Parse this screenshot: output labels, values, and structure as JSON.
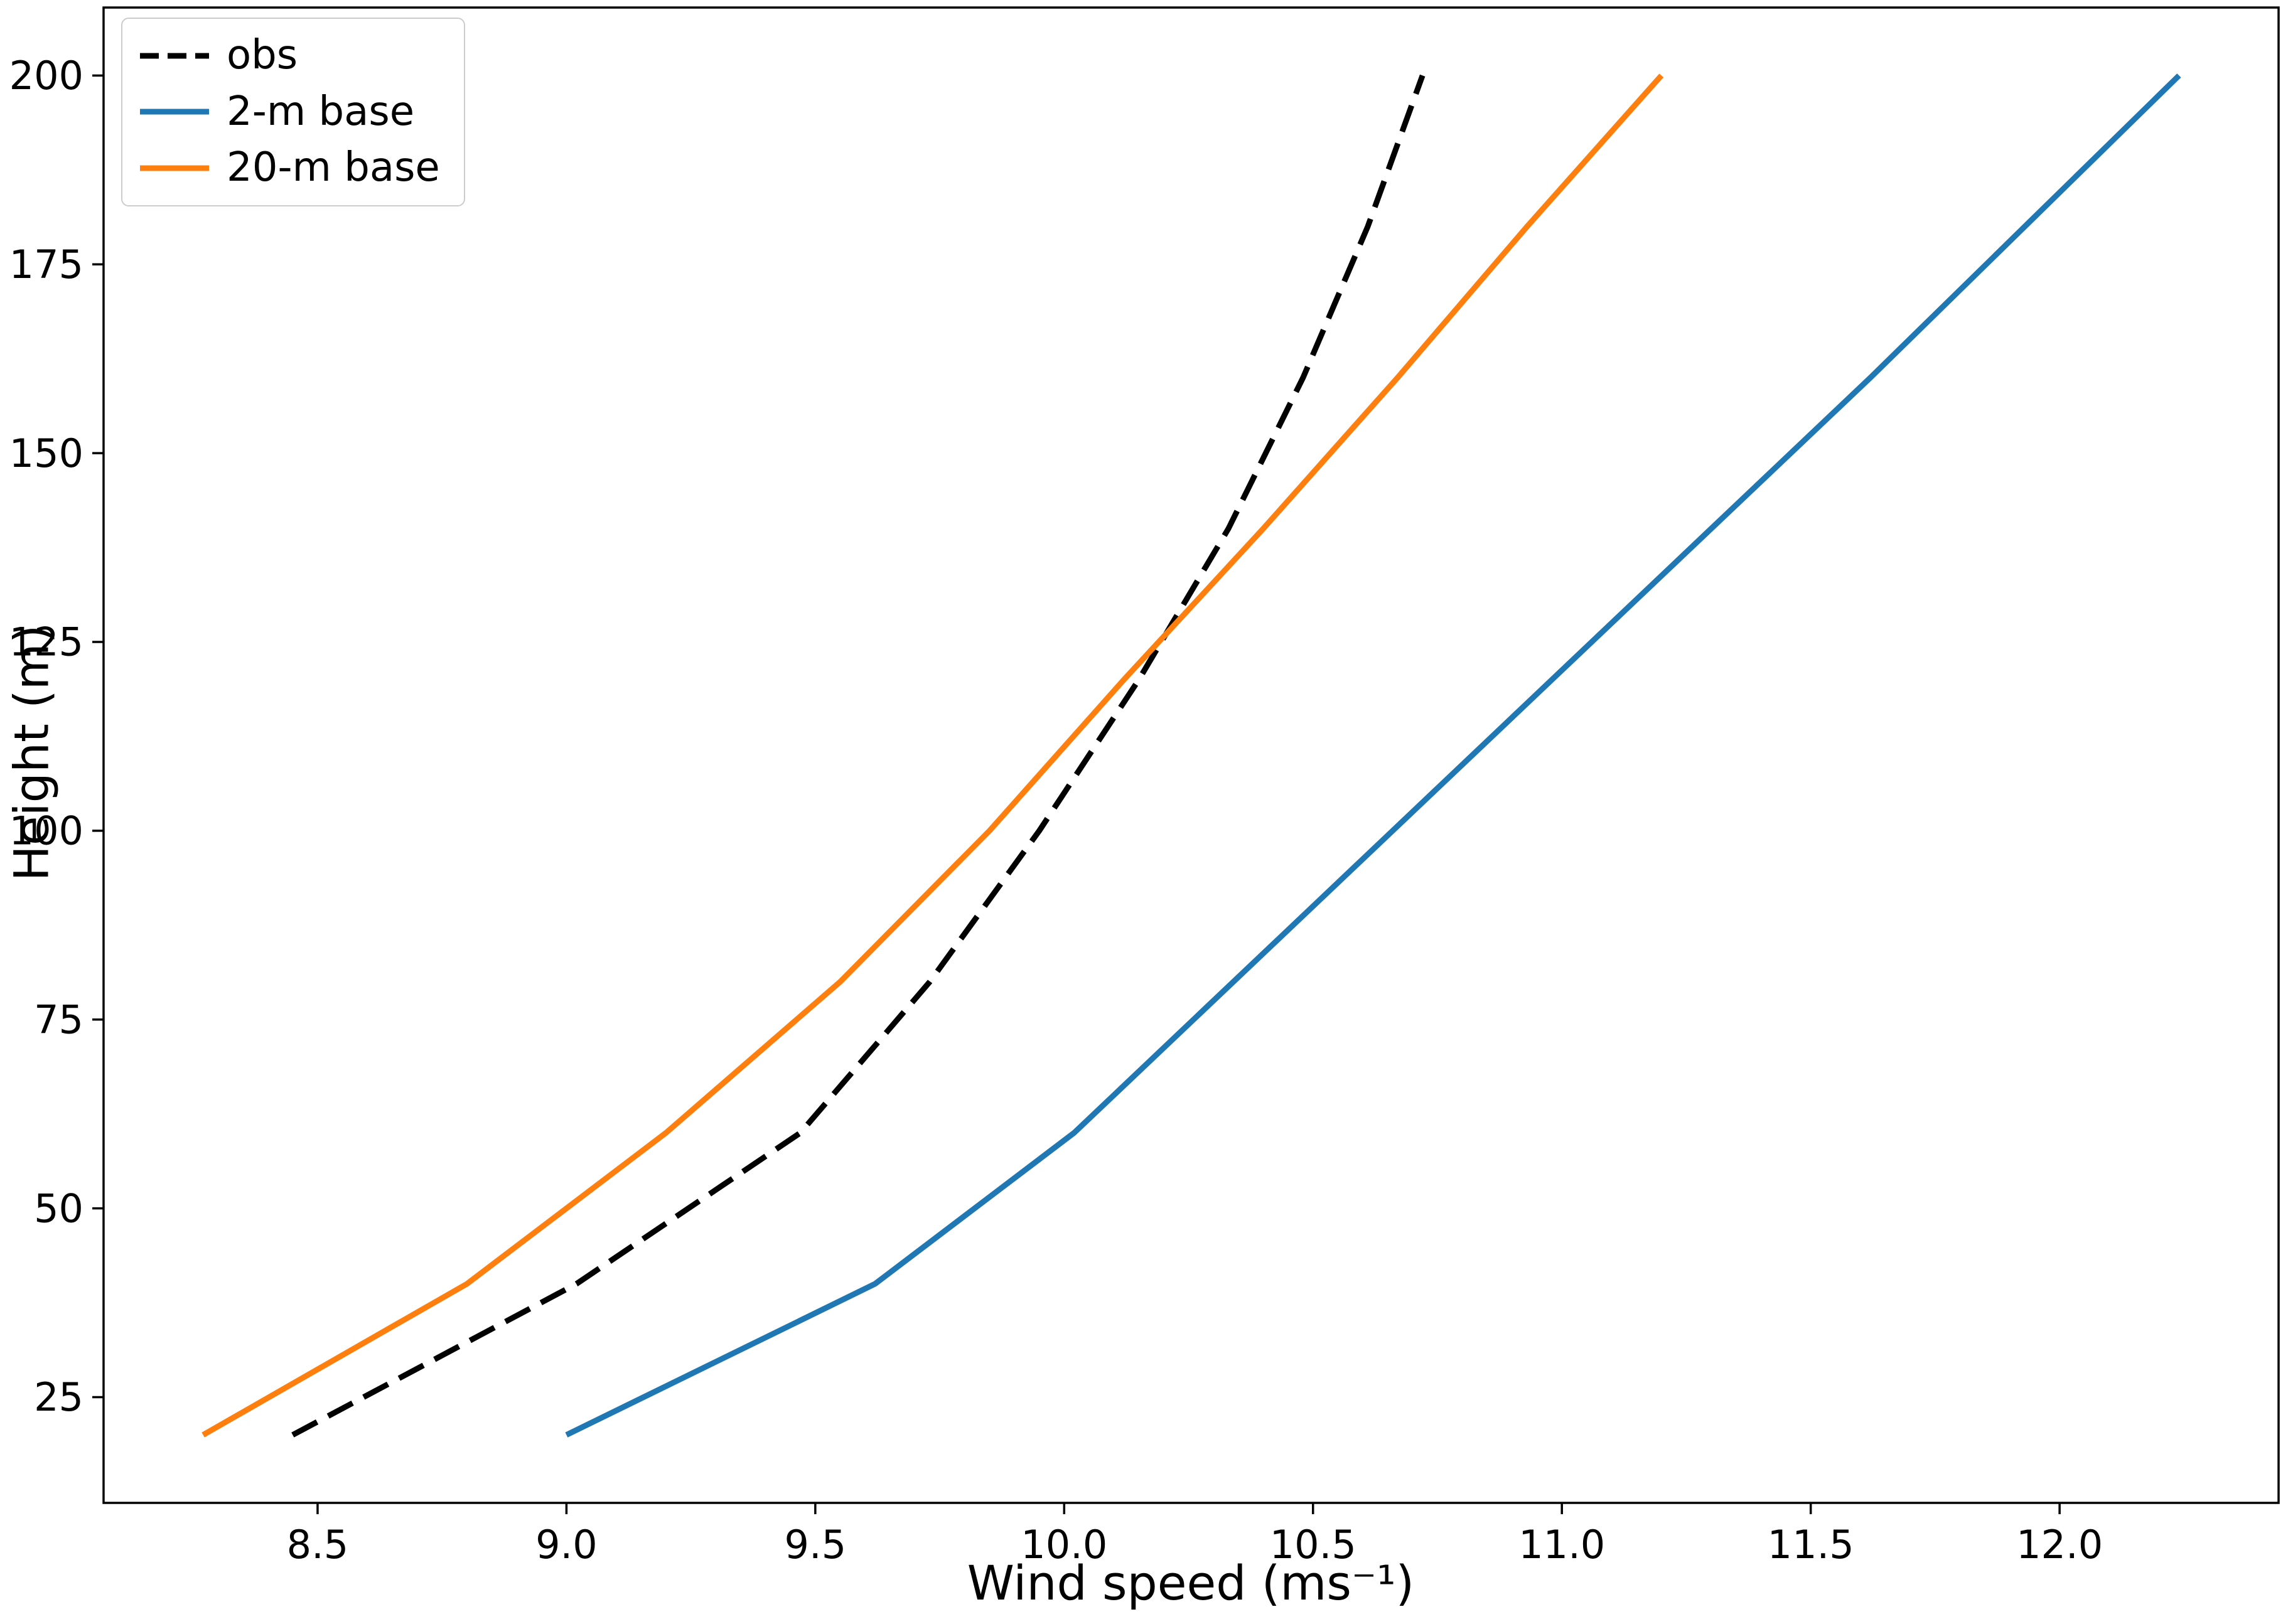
{
  "chart_data": {
    "type": "line",
    "title": "",
    "xlabel": "Wind speed (ms⁻¹)",
    "ylabel": "Height (m)",
    "xlim": [
      8.07,
      12.44
    ],
    "ylim": [
      11,
      209
    ],
    "grid": false,
    "legend_position": "upper left",
    "xticks": [
      8.5,
      9.0,
      9.5,
      10.0,
      10.5,
      11.0,
      11.5,
      12.0
    ],
    "xtick_labels": [
      "8.5",
      "9.0",
      "9.5",
      "10.0",
      "10.5",
      "11.0",
      "11.5",
      "12.0"
    ],
    "yticks": [
      25,
      50,
      75,
      100,
      125,
      150,
      175,
      200
    ],
    "ytick_labels": [
      "25",
      "50",
      "75",
      "100",
      "125",
      "150",
      "175",
      "200"
    ],
    "heights": [
      20,
      40,
      60,
      80,
      100,
      120,
      140,
      160,
      180,
      200
    ],
    "series": [
      {
        "name": "obs",
        "color": "#000000",
        "dash": true,
        "x": [
          8.45,
          9.02,
          9.47,
          9.73,
          9.95,
          10.15,
          10.33,
          10.48,
          10.61,
          10.72
        ]
      },
      {
        "name": "2-m base",
        "color": "#1f77b4",
        "dash": false,
        "x": [
          9.0,
          9.62,
          10.02,
          10.34,
          10.66,
          10.98,
          11.3,
          11.62,
          11.93,
          12.24
        ]
      },
      {
        "name": "20-m base",
        "color": "#ff7f0e",
        "dash": false,
        "x": [
          8.27,
          8.8,
          9.2,
          9.55,
          9.85,
          10.12,
          10.4,
          10.67,
          10.93,
          11.2
        ]
      }
    ]
  }
}
